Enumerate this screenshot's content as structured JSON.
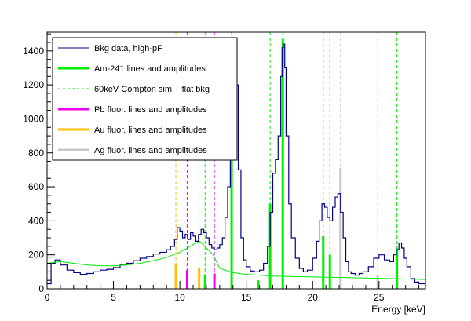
{
  "chart_data": {
    "type": "line",
    "xlabel": "Energy [keV]",
    "ylabel": "",
    "xlim": [
      0,
      28.5
    ],
    "ylim": [
      0,
      1510
    ],
    "x_ticks": [
      0,
      5,
      10,
      15,
      20,
      25
    ],
    "y_ticks": [
      0,
      200,
      400,
      600,
      800,
      1000,
      1200,
      1400
    ],
    "grid": false,
    "legend_position": "top-left",
    "colors": {
      "bkg": "#000080",
      "am": "#00ee00",
      "compton": "#00ee00",
      "pb": "#ee00ee",
      "au": "#ffc000",
      "ag": "#c8c8c8"
    },
    "legend": [
      {
        "key": "bkg",
        "label": "Bkg data, high-pF",
        "style": "line"
      },
      {
        "key": "am",
        "label": "Am-241 lines and amplitudes",
        "style": "thick"
      },
      {
        "key": "compton",
        "label": "60keV Compton sim + flat bkg",
        "style": "dashed"
      },
      {
        "key": "pb",
        "label": "Pb fluor. lines and amplitudes",
        "style": "thick"
      },
      {
        "key": "au",
        "label": "Au fluor. lines and amplitudes",
        "style": "thick"
      },
      {
        "key": "ag",
        "label": "Ag fluor. lines and amplitudes",
        "style": "thick"
      }
    ],
    "series": [
      {
        "key": "bkg",
        "x": [
          0.0,
          0.3,
          0.6,
          1.0,
          1.5,
          2.0,
          2.5,
          3.0,
          3.5,
          4.0,
          4.5,
          5.0,
          5.5,
          6.0,
          6.5,
          7.0,
          7.5,
          8.0,
          8.5,
          9.0,
          9.3,
          9.6,
          9.8,
          10.0,
          10.2,
          10.4,
          10.6,
          10.8,
          11.0,
          11.2,
          11.4,
          11.6,
          11.8,
          12.0,
          12.2,
          12.4,
          12.6,
          12.8,
          13.0,
          13.2,
          13.4,
          13.6,
          13.8,
          13.9,
          14.0,
          14.1,
          14.2,
          14.4,
          14.6,
          14.8,
          15.0,
          15.3,
          15.6,
          16.0,
          16.3,
          16.6,
          16.8,
          17.0,
          17.2,
          17.4,
          17.6,
          17.7,
          17.8,
          17.9,
          18.0,
          18.2,
          18.4,
          18.7,
          19.0,
          19.3,
          19.6,
          20.0,
          20.3,
          20.5,
          20.7,
          20.9,
          21.1,
          21.3,
          21.5,
          21.7,
          21.9,
          22.1,
          22.3,
          22.5,
          22.7,
          22.9,
          23.2,
          23.5,
          23.8,
          24.2,
          24.6,
          25.0,
          25.4,
          25.8,
          26.1,
          26.3,
          26.5,
          26.7,
          26.9,
          27.1,
          27.4,
          27.7,
          28.0,
          28.5
        ],
        "y": [
          30,
          150,
          170,
          140,
          110,
          95,
          85,
          90,
          100,
          110,
          115,
          125,
          140,
          150,
          165,
          180,
          190,
          205,
          215,
          230,
          250,
          290,
          360,
          340,
          300,
          320,
          290,
          330,
          310,
          280,
          320,
          350,
          330,
          300,
          260,
          240,
          230,
          240,
          260,
          300,
          420,
          600,
          900,
          1200,
          1380,
          1400,
          1200,
          700,
          300,
          170,
          130,
          105,
          100,
          110,
          150,
          250,
          450,
          680,
          760,
          900,
          1250,
          1420,
          1440,
          1300,
          900,
          500,
          300,
          180,
          120,
          100,
          110,
          180,
          280,
          400,
          500,
          480,
          420,
          400,
          480,
          540,
          560,
          450,
          300,
          160,
          100,
          90,
          80,
          90,
          100,
          130,
          180,
          200,
          170,
          160,
          200,
          230,
          270,
          240,
          180,
          130,
          60,
          40,
          30,
          30
        ]
      },
      {
        "key": "compton",
        "x": [
          0,
          1,
          2,
          3,
          4,
          5,
          6,
          7,
          8,
          9,
          10,
          11,
          11.5,
          12,
          12.5,
          13,
          14,
          15,
          17,
          20,
          23,
          26,
          28.5
        ],
        "y": [
          150,
          160,
          150,
          140,
          135,
          135,
          140,
          150,
          165,
          185,
          215,
          260,
          280,
          240,
          200,
          120,
          95,
          85,
          75,
          70,
          65,
          60,
          55
        ]
      }
    ],
    "lines": [
      {
        "group": "am",
        "energy": 13.9,
        "amplitude": 1400
      },
      {
        "group": "am",
        "energy": 17.75,
        "amplitude": 1470
      },
      {
        "group": "am",
        "energy": 16.8,
        "amplitude": 500
      },
      {
        "group": "am",
        "energy": 20.8,
        "amplitude": 310
      },
      {
        "group": "am",
        "energy": 21.3,
        "amplitude": 200
      },
      {
        "group": "am",
        "energy": 26.35,
        "amplitude": 240
      },
      {
        "group": "am",
        "energy": 11.9,
        "amplitude": 80
      },
      {
        "group": "am",
        "energy": 15.9,
        "amplitude": 50
      },
      {
        "group": "au",
        "energy": 9.7,
        "amplitude": 150
      },
      {
        "group": "au",
        "energy": 11.45,
        "amplitude": 120
      },
      {
        "group": "pb",
        "energy": 10.55,
        "amplitude": 110
      },
      {
        "group": "pb",
        "energy": 12.6,
        "amplitude": 90
      },
      {
        "group": "ag",
        "energy": 22.1,
        "amplitude": 710
      },
      {
        "group": "ag",
        "energy": 24.9,
        "amplitude": 80
      }
    ],
    "reference_lines": [
      {
        "group": "au",
        "energy": 9.7
      },
      {
        "group": "pb",
        "energy": 10.55
      },
      {
        "group": "au",
        "energy": 11.45
      },
      {
        "group": "am",
        "energy": 11.9
      },
      {
        "group": "pb",
        "energy": 12.6
      },
      {
        "group": "am",
        "energy": 13.9
      },
      {
        "group": "am",
        "energy": 16.8
      },
      {
        "group": "am",
        "energy": 17.75
      },
      {
        "group": "am",
        "energy": 20.8
      },
      {
        "group": "am",
        "energy": 21.3
      },
      {
        "group": "ag",
        "energy": 22.1
      },
      {
        "group": "ag",
        "energy": 24.9
      },
      {
        "group": "am",
        "energy": 26.35
      }
    ]
  }
}
